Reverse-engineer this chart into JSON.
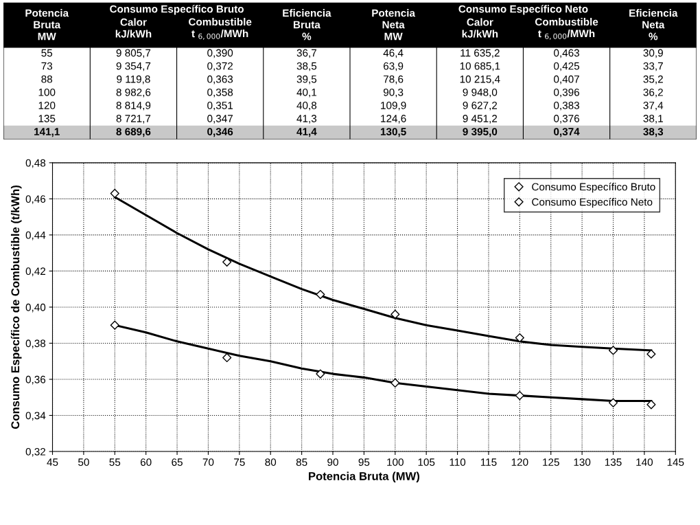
{
  "chart_data": [
    {
      "type": "other",
      "categories": [
        "Potencia\nBruta\nMW",
        "Calor\nkJ/kWh",
        "Combustible\nt $_{6,000}$/MWh",
        "Eficiencia\nBruta\n%",
        "Potencia\nNeta\nMW",
        "Calor\nkJ/kWh",
        "Combustible\nt $_{6,000}$/MWh",
        "Eficiencia\nNeta\n%"
      ],
      "annotations": [
        "Consumo Específico Bruto",
        "Consumo Específico Neto"
      ],
      "cell_labels": [
        [
          "55",
          "9 805,7",
          "0,390",
          "36,7",
          "46,4",
          "11 635,2",
          "0,463",
          "30,9"
        ],
        [
          "73",
          "9 354,7",
          "0,372",
          "38,5",
          "63,9",
          "10 685,1",
          "0,425",
          "33,7"
        ],
        [
          "88",
          "9 119,8",
          "0,363",
          "39,5",
          "78,6",
          "10 215,4",
          "0,407",
          "35,2"
        ],
        [
          "100",
          "8 982,6",
          "0,358",
          "40,1",
          "90,3",
          "9 948,0",
          "0,396",
          "36,2"
        ],
        [
          "120",
          "8 814,9",
          "0,351",
          "40,8",
          "109,9",
          "9 627,2",
          "0,383",
          "37,4"
        ],
        [
          "135",
          "8 721,7",
          "0,347",
          "41,3",
          "124,6",
          "9 451,2",
          "0,376",
          "38,1"
        ],
        [
          "141,1",
          "8 689,6",
          "0,346",
          "41,4",
          "130,5",
          "9 395,0",
          "0,374",
          "38,3"
        ]
      ]
    },
    {
      "type": "scatter",
      "x": [
        55,
        73,
        88,
        100,
        120,
        135,
        141.1
      ],
      "series": [
        {
          "name": "Consumo Específico Bruto",
          "color": "#000000",
          "values": [
            0.39,
            0.372,
            0.363,
            0.358,
            0.351,
            0.347,
            0.346
          ]
        },
        {
          "name": "Consumo Específico Neto",
          "color": "#000000",
          "values": [
            0.463,
            0.425,
            0.407,
            0.396,
            0.383,
            0.376,
            0.374
          ]
        },
        {
          "type": "line",
          "marker": "none",
          "color": "#000000",
          "x": [
            55,
            60,
            65,
            70,
            75,
            80,
            85,
            90,
            95,
            100,
            105,
            110,
            115,
            120,
            125,
            130,
            135,
            141.1
          ],
          "values": [
            0.39,
            0.386,
            0.381,
            0.377,
            0.373,
            0.37,
            0.366,
            0.363,
            0.361,
            0.358,
            0.356,
            0.354,
            0.352,
            0.351,
            0.35,
            0.349,
            0.348,
            0.348
          ]
        },
        {
          "type": "line",
          "marker": "none",
          "color": "#000000",
          "x": [
            55,
            60,
            65,
            70,
            75,
            80,
            85,
            90,
            95,
            100,
            105,
            110,
            115,
            120,
            125,
            130,
            135,
            141.1
          ],
          "values": [
            0.461,
            0.451,
            0.441,
            0.432,
            0.424,
            0.417,
            0.41,
            0.404,
            0.399,
            0.394,
            0.39,
            0.387,
            0.384,
            0.381,
            0.379,
            0.378,
            0.377,
            0.376
          ]
        }
      ],
      "marker": "diamond",
      "grid": true,
      "legend": "top right",
      "xlabel": "Potencia Bruta (MW)",
      "ylabel": "Consumo Específico de Combustible (t/kWh)",
      "xlim": [
        45,
        145
      ],
      "xticks": [
        45,
        50,
        55,
        60,
        65,
        70,
        75,
        80,
        85,
        90,
        95,
        100,
        105,
        110,
        115,
        120,
        125,
        130,
        135,
        140,
        145
      ],
      "ylim": [
        0.32,
        0.48
      ],
      "yticks": [
        {
          "value": 0.32,
          "label": "0,32"
        },
        {
          "value": 0.34,
          "label": "0,34"
        },
        {
          "value": 0.36,
          "label": "0,36"
        },
        {
          "value": 0.38,
          "label": "0,38"
        },
        {
          "value": 0.4,
          "label": "0,40"
        },
        {
          "value": 0.42,
          "label": "0,42"
        },
        {
          "value": 0.44,
          "label": "0,44"
        },
        {
          "value": 0.46,
          "label": "0,46"
        },
        {
          "value": 0.48,
          "label": "0,48"
        }
      ]
    }
  ]
}
